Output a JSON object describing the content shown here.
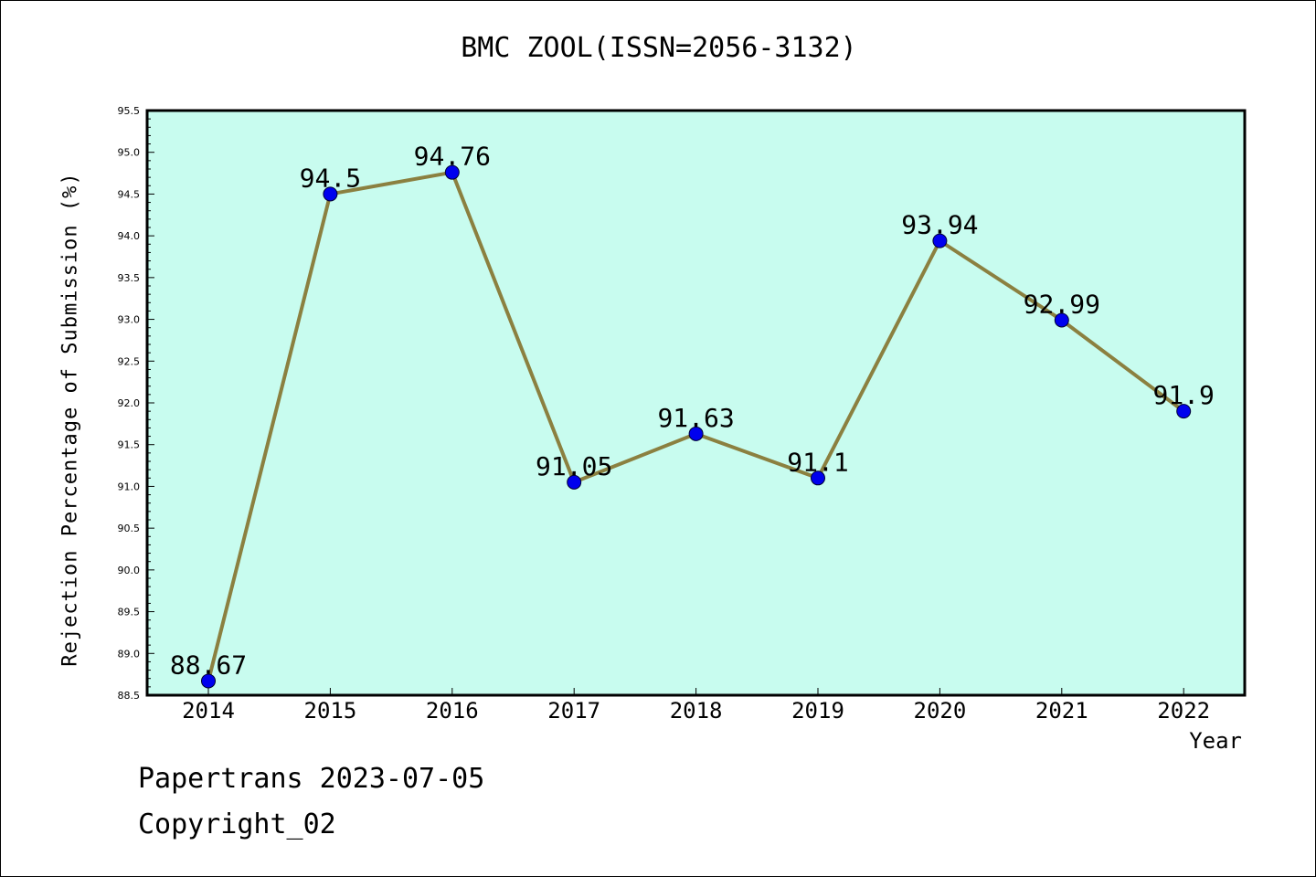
{
  "chart_data": {
    "type": "line",
    "title": "BMC ZOOL(ISSN=2056-3132)",
    "xlabel": "Year",
    "ylabel": "Rejection Percentage of Submission (%)",
    "categories": [
      "2014",
      "2015",
      "2016",
      "2017",
      "2018",
      "2019",
      "2020",
      "2021",
      "2022"
    ],
    "series": [
      {
        "values": [
          88.67,
          94.5,
          94.76,
          91.05,
          91.63,
          91.1,
          93.94,
          92.99,
          91.9
        ],
        "data_labels": [
          "88.67",
          "94.5",
          "94.76",
          "91.05",
          "91.63",
          "91.1",
          "93.94",
          "92.99",
          "91.9"
        ]
      }
    ],
    "ylim": [
      88.5,
      95.5
    ],
    "y_ticks": [
      "88.5",
      "89.0",
      "89.5",
      "90.0",
      "90.5",
      "91.0",
      "91.5",
      "92.0",
      "92.5",
      "93.0",
      "93.5",
      "94.0",
      "94.5",
      "95.0",
      "95.5"
    ],
    "grid": false,
    "legend": "none",
    "colors": {
      "plot_background": "#c8fcef",
      "line": "#8b8040",
      "marker": "#0000ee"
    }
  },
  "footer": {
    "line1": "Papertrans 2023-07-05",
    "line2": "Copyright_02"
  }
}
